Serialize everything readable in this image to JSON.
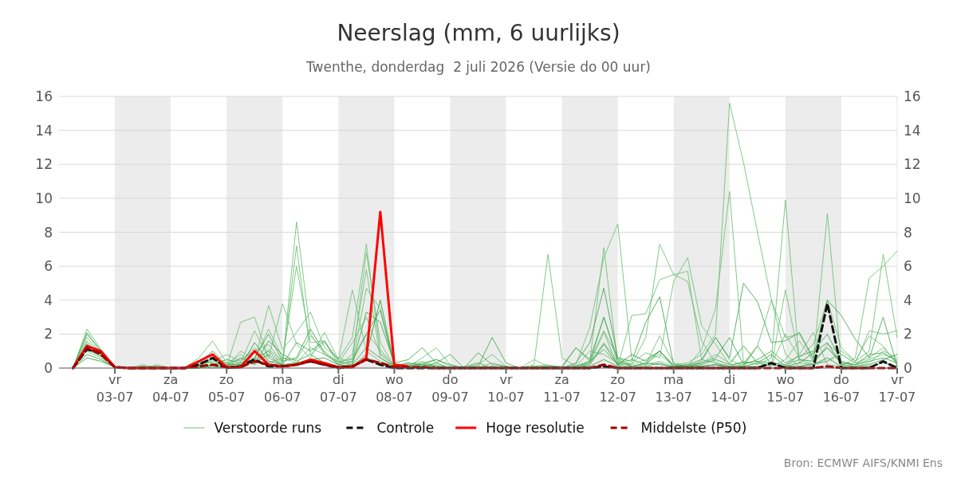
{
  "chart_data": {
    "type": "line",
    "title": "Neerslag (mm, 6 uurlijks)",
    "subtitle": "Twenthe, donderdag  2 juli 2026 (Versie do 00 uur)",
    "annotations": [
      "Bron: ECMWF AIFS/KNMI Ens"
    ],
    "x": [
      "2026-07-02T06:00",
      "2026-07-02T12:00",
      "2026-07-02T18:00",
      "2026-07-03T00:00",
      "2026-07-03T06:00",
      "2026-07-03T12:00",
      "2026-07-03T18:00",
      "2026-07-04T00:00",
      "2026-07-04T06:00",
      "2026-07-04T12:00",
      "2026-07-04T18:00",
      "2026-07-05T00:00",
      "2026-07-05T06:00",
      "2026-07-05T12:00",
      "2026-07-05T18:00",
      "2026-07-06T00:00",
      "2026-07-06T06:00",
      "2026-07-06T12:00",
      "2026-07-06T18:00",
      "2026-07-07T00:00",
      "2026-07-07T06:00",
      "2026-07-07T12:00",
      "2026-07-07T18:00",
      "2026-07-08T00:00",
      "2026-07-08T06:00",
      "2026-07-08T12:00",
      "2026-07-08T18:00",
      "2026-07-09T00:00",
      "2026-07-09T06:00",
      "2026-07-09T12:00",
      "2026-07-09T18:00",
      "2026-07-10T00:00",
      "2026-07-10T06:00",
      "2026-07-10T12:00",
      "2026-07-10T18:00",
      "2026-07-11T00:00",
      "2026-07-11T06:00",
      "2026-07-11T12:00",
      "2026-07-11T18:00",
      "2026-07-12T00:00",
      "2026-07-12T06:00",
      "2026-07-12T12:00",
      "2026-07-12T18:00",
      "2026-07-13T00:00",
      "2026-07-13T06:00",
      "2026-07-13T12:00",
      "2026-07-13T18:00",
      "2026-07-14T00:00",
      "2026-07-14T06:00",
      "2026-07-14T12:00",
      "2026-07-14T18:00",
      "2026-07-15T00:00",
      "2026-07-15T06:00",
      "2026-07-15T12:00",
      "2026-07-15T18:00",
      "2026-07-16T00:00",
      "2026-07-16T06:00",
      "2026-07-16T12:00",
      "2026-07-16T18:00",
      "2026-07-17T00:00"
    ],
    "xlim": [
      "2026-07-02T00:00",
      "2026-07-17T00:00"
    ],
    "xticks": [
      {
        "value": "2026-07-03",
        "label": "vr\n03-07"
      },
      {
        "value": "2026-07-04",
        "label": "za\n04-07"
      },
      {
        "value": "2026-07-05",
        "label": "zo\n05-07"
      },
      {
        "value": "2026-07-06",
        "label": "ma\n06-07"
      },
      {
        "value": "2026-07-07",
        "label": "di\n07-07"
      },
      {
        "value": "2026-07-08",
        "label": "wo\n08-07"
      },
      {
        "value": "2026-07-09",
        "label": "do\n09-07"
      },
      {
        "value": "2026-07-10",
        "label": "vr\n10-07"
      },
      {
        "value": "2026-07-11",
        "label": "za\n11-07"
      },
      {
        "value": "2026-07-12",
        "label": "zo\n12-07"
      },
      {
        "value": "2026-07-13",
        "label": "ma\n13-07"
      },
      {
        "value": "2026-07-14",
        "label": "di\n14-07"
      },
      {
        "value": "2026-07-15",
        "label": "wo\n15-07"
      },
      {
        "value": "2026-07-16",
        "label": "do\n16-07"
      },
      {
        "value": "2026-07-17",
        "label": "vr\n17-07"
      }
    ],
    "ylim": [
      0,
      16
    ],
    "yticks": [
      0,
      2,
      4,
      6,
      8,
      10,
      12,
      14,
      16
    ],
    "y2lim": [
      0,
      16
    ],
    "y2ticks": [
      0,
      2,
      4,
      6,
      8,
      10,
      12,
      14,
      16
    ],
    "grid": "y",
    "legend": "bottom",
    "bands": [
      {
        "axis": "x",
        "from": "2026-07-03",
        "to": "2026-07-04",
        "color": "#ececec"
      },
      {
        "axis": "x",
        "from": "2026-07-05",
        "to": "2026-07-06",
        "color": "#ececec"
      },
      {
        "axis": "x",
        "from": "2026-07-07",
        "to": "2026-07-08",
        "color": "#ececec"
      },
      {
        "axis": "x",
        "from": "2026-07-09",
        "to": "2026-07-10",
        "color": "#ececec"
      },
      {
        "axis": "x",
        "from": "2026-07-11",
        "to": "2026-07-12",
        "color": "#ececec"
      },
      {
        "axis": "x",
        "from": "2026-07-13",
        "to": "2026-07-14",
        "color": "#ececec"
      },
      {
        "axis": "x",
        "from": "2026-07-15",
        "to": "2026-07-16",
        "color": "#ececec"
      }
    ],
    "series": [
      {
        "name": "Verstoorde runs",
        "color": "#6cbf73",
        "values": [
          0,
          1.8,
          0.9,
          0.05,
          0,
          0.1,
          0,
          0,
          0,
          0.3,
          0.8,
          0.1,
          1.0,
          0.5,
          2.3,
          0.6,
          0.3,
          1.2,
          0.8,
          0.4,
          0.5,
          6.8,
          1.5,
          0.1,
          0.2,
          0.4,
          0.1,
          0,
          0,
          0.1,
          0,
          0,
          0,
          0.1,
          0.2,
          0,
          0.1,
          1.0,
          0.8,
          0.3,
          0.2,
          0.5,
          1.0,
          0.2,
          0.3,
          0.8,
          2.0,
          15.6,
          12.1,
          8.0,
          4.0,
          1.8,
          2.0,
          0.5,
          1.2,
          0.3,
          0.2,
          0.5,
          0.8,
          0.5
        ]
      },
      {
        "color": "#6cbf73",
        "values": [
          0,
          2.1,
          1.0,
          0.05,
          0,
          0,
          0.1,
          0,
          0,
          0.2,
          0.4,
          0.3,
          0.5,
          1.0,
          1.4,
          0.3,
          8.6,
          2.0,
          0.8,
          0.3,
          1.5,
          3.0,
          0.8,
          0.1,
          0.1,
          0.2,
          0.1,
          0,
          0,
          0,
          0,
          0,
          0,
          0,
          0,
          0,
          0,
          0.3,
          1.5,
          0.4,
          0.1,
          0.3,
          0.8,
          0.1,
          0.1,
          1.1,
          3.5,
          10.4,
          0.3,
          1.3,
          0.2,
          4.6,
          0.5,
          0.2,
          0.4,
          1.0,
          0.4,
          1.9,
          1.3,
          0.2
        ]
      },
      {
        "color": "#6cbf73",
        "values": [
          0,
          1.5,
          0.8,
          0.05,
          0,
          0,
          0,
          0,
          0,
          0.1,
          0,
          0.1,
          0.3,
          2.2,
          0.6,
          0.2,
          7.2,
          0.8,
          1.5,
          0.5,
          4.6,
          1.0,
          0.4,
          0.1,
          0.2,
          0.1,
          0,
          0,
          0.1,
          0.3,
          0,
          0,
          0,
          0,
          0.1,
          0,
          0.1,
          0.4,
          2.2,
          0.6,
          0.2,
          1.8,
          7.3,
          5.5,
          5.1,
          1.6,
          0.3,
          0.1,
          0.4,
          0.2,
          0.6,
          9.9,
          0.3,
          0.2,
          1.4,
          0.8,
          0.3,
          0.6,
          1.2,
          0.3
        ]
      },
      {
        "color": "#6cbf73",
        "values": [
          0,
          1.2,
          0.7,
          0.05,
          0,
          0,
          0,
          0,
          0,
          0.4,
          0.3,
          0.2,
          0.8,
          0.2,
          1.1,
          0.4,
          6.0,
          1.5,
          1.6,
          0.2,
          0.8,
          5.8,
          0.6,
          0.1,
          0.1,
          0.3,
          0,
          0,
          0,
          0,
          0,
          0,
          0,
          0.2,
          6.7,
          0.6,
          0.1,
          0.3,
          3.0,
          0.3,
          0.5,
          0.2,
          0.4,
          0.1,
          0.2,
          0.3,
          0.8,
          0.3,
          1.3,
          0.3,
          0.1,
          0.5,
          1.6,
          0.4,
          9.1,
          0.2,
          0.1,
          0.3,
          1.0,
          0.6
        ]
      },
      {
        "color": "#6cbf73",
        "values": [
          0,
          1.0,
          0.6,
          0.05,
          0,
          0.2,
          0,
          0,
          0,
          0.6,
          1.6,
          0.3,
          0.2,
          0.4,
          3.7,
          1.1,
          2.1,
          3.3,
          1.2,
          0.6,
          0.3,
          4.7,
          3.5,
          0.2,
          0.1,
          0.6,
          1.2,
          0.2,
          0,
          0.3,
          0,
          0,
          0,
          0.5,
          0.1,
          0,
          0.2,
          2.4,
          6.5,
          8.5,
          0.5,
          0.2,
          1.9,
          0.3,
          0.1,
          0.4,
          1.8,
          0.5,
          0.1,
          1.3,
          0.2,
          0.1,
          0.8,
          2.1,
          0.2,
          0.1,
          0.6,
          5.3,
          6.0,
          6.9
        ]
      },
      {
        "color": "#6cbf73",
        "values": [
          0,
          2.3,
          1.1,
          0.05,
          0,
          0,
          0.2,
          0,
          0,
          0.2,
          0.5,
          0.1,
          2.7,
          3.0,
          0.6,
          3.8,
          1.4,
          0.6,
          2.1,
          0.5,
          1.8,
          7.3,
          0.9,
          0.2,
          0.1,
          0.3,
          0.5,
          0.1,
          0,
          0.2,
          0.8,
          0.1,
          0,
          0.1,
          0.1,
          0,
          1.2,
          0.4,
          7.1,
          0.2,
          0.3,
          0.9,
          0.6,
          5.1,
          6.5,
          2.5,
          1.4,
          0.2,
          1.3,
          0.3,
          0.2,
          2.0,
          0.6,
          1.4,
          4.0,
          1.2,
          0.4,
          1.0,
          6.7,
          1.8
        ]
      },
      {
        "color": "#6cbf73",
        "values": [
          0,
          1.6,
          0.9,
          0.05,
          0,
          0,
          0,
          0,
          0,
          0.1,
          0.4,
          0.8,
          0.4,
          1.2,
          0.3,
          0.6,
          0.5,
          1.9,
          1.0,
          0.3,
          0.6,
          2.0,
          1.1,
          0.1,
          0.3,
          0.1,
          0.2,
          0,
          0,
          0,
          0.3,
          0.1,
          0,
          0.1,
          0,
          0,
          0,
          0.3,
          2.1,
          0.1,
          3.1,
          3.2,
          5.2,
          5.5,
          5.7,
          0.5,
          0.3,
          0.1,
          0.2,
          1.3,
          4.0,
          0.8,
          0.1,
          0.3,
          0.4,
          0.8,
          0.3,
          2.2,
          2.0,
          2.2
        ]
      },
      {
        "color": "#3da64c",
        "values": [
          0,
          0.8,
          0.5,
          0.05,
          0,
          0,
          0,
          0,
          0,
          0.1,
          0.2,
          0.5,
          0.3,
          0.5,
          1.0,
          0.2,
          1.5,
          1.0,
          1.6,
          0.4,
          0.2,
          3.3,
          2.7,
          0.3,
          0.5,
          1.2,
          0.3,
          0.8,
          0,
          0.9,
          0.2,
          0.1,
          0,
          0,
          0.1,
          0.1,
          1.2,
          0.5,
          3.0,
          0.5,
          0.1,
          0.2,
          1.0,
          0.1,
          0.2,
          0.5,
          1.8,
          0.6,
          5.0,
          3.9,
          1.5,
          1.6,
          2.1,
          0.6,
          4.0,
          3.1,
          1.7,
          0.6,
          3.0,
          0.1
        ]
      },
      {
        "color": "#3da64c",
        "values": [
          0,
          2.0,
          1.0,
          0.05,
          0,
          0,
          0,
          0,
          0,
          0.3,
          1.0,
          0.2,
          0.2,
          0.6,
          2.0,
          0.4,
          0.6,
          2.3,
          0.9,
          0.2,
          0.4,
          2.0,
          3.4,
          0.1,
          0.3,
          0.2,
          0.5,
          0.2,
          0,
          0.1,
          1.8,
          0.3,
          0,
          0,
          0,
          0,
          0.3,
          1.5,
          4.7,
          0.6,
          0.4,
          2.7,
          4.2,
          0.2,
          0.1,
          0.3,
          0.6,
          1.8,
          0.2,
          0.5,
          1.0,
          0.3,
          0.7,
          1.0,
          2.0,
          0.4,
          0.2,
          0.8,
          0.9,
          0.4
        ]
      },
      {
        "color": "#3da64c",
        "values": [
          0,
          1.4,
          0.9,
          0.05,
          0,
          0.1,
          0,
          0,
          0,
          0.2,
          0.6,
          0.1,
          0.6,
          0.2,
          1.6,
          0.8,
          0.4,
          0.8,
          0.3,
          0.1,
          0.2,
          1.2,
          0.6,
          0.1,
          0.1,
          0.2,
          0.1,
          0,
          0,
          0,
          0.1,
          0,
          0,
          0,
          0,
          0,
          0.1,
          0.4,
          1.1,
          0.2,
          0.1,
          0.3,
          0.2,
          0.1,
          0.1,
          0.2,
          0.5,
          0.2,
          0.3,
          0.4,
          0.3,
          0.2,
          0.5,
          0.4,
          1.2,
          0.3,
          0.2,
          0.4,
          0.6,
          0.3
        ]
      },
      {
        "color": "#2e9a40",
        "values": [
          0,
          1.1,
          0.7,
          0.05,
          0,
          0,
          0.1,
          0,
          0,
          0,
          0.2,
          0.1,
          0.1,
          1.5,
          0.4,
          0.2,
          0.3,
          0.5,
          0.6,
          0.2,
          0.1,
          0.8,
          4.0,
          0.2,
          0,
          0.1,
          0.3,
          0,
          0,
          0,
          0,
          0,
          0,
          0,
          0,
          0,
          0,
          0.2,
          1.4,
          0.2,
          0.8,
          0.4,
          1.0,
          0.1,
          0.1,
          0.1,
          0.2,
          0.1,
          0.1,
          0.3,
          0.8,
          0.1,
          0.3,
          0.9,
          1.5,
          0.2,
          0.1,
          0.2,
          0.5,
          0.8
        ]
      },
      {
        "color": "#2e9a40",
        "values": [
          0,
          0.6,
          0.4,
          0.05,
          0,
          0,
          0,
          0,
          0,
          0,
          0.1,
          0,
          0.2,
          0.3,
          0.8,
          0.1,
          0.2,
          0.4,
          0.2,
          0.1,
          0.1,
          0.6,
          0.3,
          0,
          0,
          0,
          0,
          0,
          0,
          0,
          0,
          0,
          0,
          0,
          0,
          0,
          0,
          0.1,
          0.5,
          0.1,
          0,
          0.1,
          0.3,
          0,
          0,
          0.1,
          0.2,
          0,
          0.1,
          0.1,
          0.2,
          0.1,
          0.1,
          0.2,
          0.6,
          0.1,
          0,
          0.1,
          0.3,
          0.1
        ]
      },
      {
        "name": "Controle",
        "color": "#111111",
        "line_style": "dashed",
        "values": [
          0,
          1.1,
          0.9,
          0.05,
          0,
          0,
          0,
          0,
          0,
          0.2,
          0.6,
          0,
          0.1,
          0.5,
          0.1,
          0.1,
          0.2,
          0.4,
          0.2,
          0,
          0.1,
          0.5,
          0.2,
          0,
          0,
          0,
          0,
          0,
          0,
          0,
          0,
          0,
          0,
          0,
          0,
          0,
          0,
          0,
          0.1,
          0,
          0,
          0,
          0,
          0,
          0,
          0,
          0,
          0,
          0,
          0,
          0.3,
          0,
          0,
          0,
          3.8,
          0,
          0,
          0,
          0.4,
          0
        ]
      },
      {
        "name": "Hoge resolutie",
        "color": "#ff0000",
        "values": [
          0,
          1.3,
          1.0,
          0.05,
          0,
          0,
          0,
          0,
          0,
          0.4,
          0.8,
          0.05,
          0.05,
          1.0,
          0.2,
          0.1,
          0.2,
          0.5,
          0.3,
          0.05,
          0.05,
          0.6,
          9.2,
          0.2,
          0.1,
          null,
          null,
          null,
          null,
          null,
          null,
          null,
          null,
          null,
          null,
          null,
          null,
          null,
          null,
          null,
          null,
          null,
          null,
          null,
          null,
          null,
          null,
          null,
          null,
          null,
          null,
          null,
          null,
          null,
          null,
          null,
          null,
          null,
          null,
          null
        ]
      },
      {
        "name": "Middelste (P50)",
        "color": "#a00000",
        "line_style": "dashed",
        "values": [
          0,
          1.2,
          0.8,
          0.05,
          0,
          0,
          0,
          0,
          0,
          0.1,
          0.2,
          0.05,
          0.05,
          0.4,
          0.2,
          0.1,
          0.2,
          0.4,
          0.2,
          0.05,
          0.1,
          0.5,
          0.3,
          0.05,
          0.05,
          0.05,
          0,
          0,
          0,
          0,
          0,
          0,
          0,
          0,
          0,
          0,
          0,
          0,
          0.2,
          0,
          0,
          0,
          0,
          0,
          0,
          0,
          0,
          0,
          0,
          0,
          0,
          0,
          0,
          0,
          0.1,
          0,
          0,
          0,
          0,
          0
        ]
      }
    ]
  }
}
